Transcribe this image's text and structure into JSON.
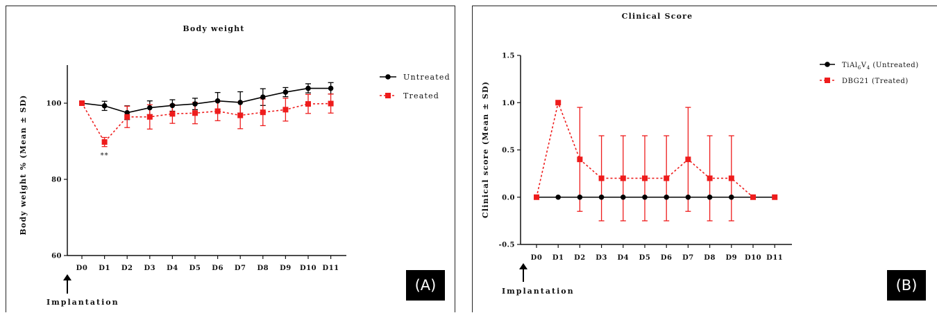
{
  "panels": {
    "a": {
      "badge": "(A)",
      "arrow_label": "Implantation",
      "significance_label": "**"
    },
    "b": {
      "badge": "(B)",
      "arrow_label": "Implantation"
    }
  },
  "chart_data": [
    {
      "type": "line",
      "title": "Body weight",
      "xlabel": "",
      "ylabel": "Body weight % (Mean ± SD)",
      "categories": [
        "D0",
        "D1",
        "D2",
        "D3",
        "D4",
        "D5",
        "D6",
        "D7",
        "D8",
        "D9",
        "D10",
        "D11"
      ],
      "ylim": [
        60,
        110
      ],
      "yticks": [
        60,
        80,
        100
      ],
      "grid": false,
      "legend_position": "top-right",
      "series": [
        {
          "name": "Untreated",
          "color": "#000000",
          "marker": "circle",
          "line": "solid",
          "values": [
            100,
            99.3,
            97.5,
            98.8,
            99.4,
            99.8,
            100.6,
            100.2,
            101.6,
            102.9,
            103.9,
            103.9
          ],
          "sd": [
            0.5,
            1.2,
            1.8,
            1.8,
            1.5,
            1.5,
            2.2,
            2.8,
            2.2,
            1.2,
            1.2,
            1.5
          ]
        },
        {
          "name": "Treated",
          "color": "#ee1c1c",
          "marker": "square",
          "line": "dashed",
          "values": [
            100,
            89.8,
            96.4,
            96.4,
            97.2,
            97.4,
            97.9,
            96.8,
            97.6,
            98.3,
            99.8,
            99.9
          ],
          "sd": [
            0.5,
            1.2,
            2.8,
            3.2,
            2.5,
            2.8,
            2.5,
            3.5,
            3.5,
            3.0,
            2.5,
            2.5
          ]
        }
      ]
    },
    {
      "type": "line",
      "title": "Clinical Score",
      "xlabel": "",
      "ylabel": "Clinical score (Mean ± SD)",
      "categories": [
        "D0",
        "D1",
        "D2",
        "D3",
        "D4",
        "D5",
        "D6",
        "D7",
        "D8",
        "D9",
        "D10",
        "D11"
      ],
      "ylim": [
        -0.5,
        1.5
      ],
      "yticks": [
        "-0.5",
        "0.0",
        "0.5",
        "1.0",
        "1.5"
      ],
      "grid": false,
      "legend_position": "top-right",
      "series": [
        {
          "name": "TiAl6V4 (Untreated)",
          "color": "#000000",
          "marker": "circle",
          "line": "solid",
          "values": [
            0,
            0,
            0,
            0,
            0,
            0,
            0,
            0,
            0,
            0,
            0,
            0
          ],
          "sd": [
            0,
            0,
            0,
            0,
            0,
            0,
            0,
            0,
            0,
            0,
            0,
            0
          ]
        },
        {
          "name": "DBG21 (Treated)",
          "color": "#ee1c1c",
          "marker": "square",
          "line": "dashed",
          "values": [
            0,
            1.0,
            0.4,
            0.2,
            0.2,
            0.2,
            0.2,
            0.4,
            0.2,
            0.2,
            0,
            0
          ],
          "sd": [
            0,
            0,
            0.55,
            0.45,
            0.45,
            0.45,
            0.45,
            0.55,
            0.45,
            0.45,
            0,
            0
          ]
        }
      ]
    }
  ]
}
